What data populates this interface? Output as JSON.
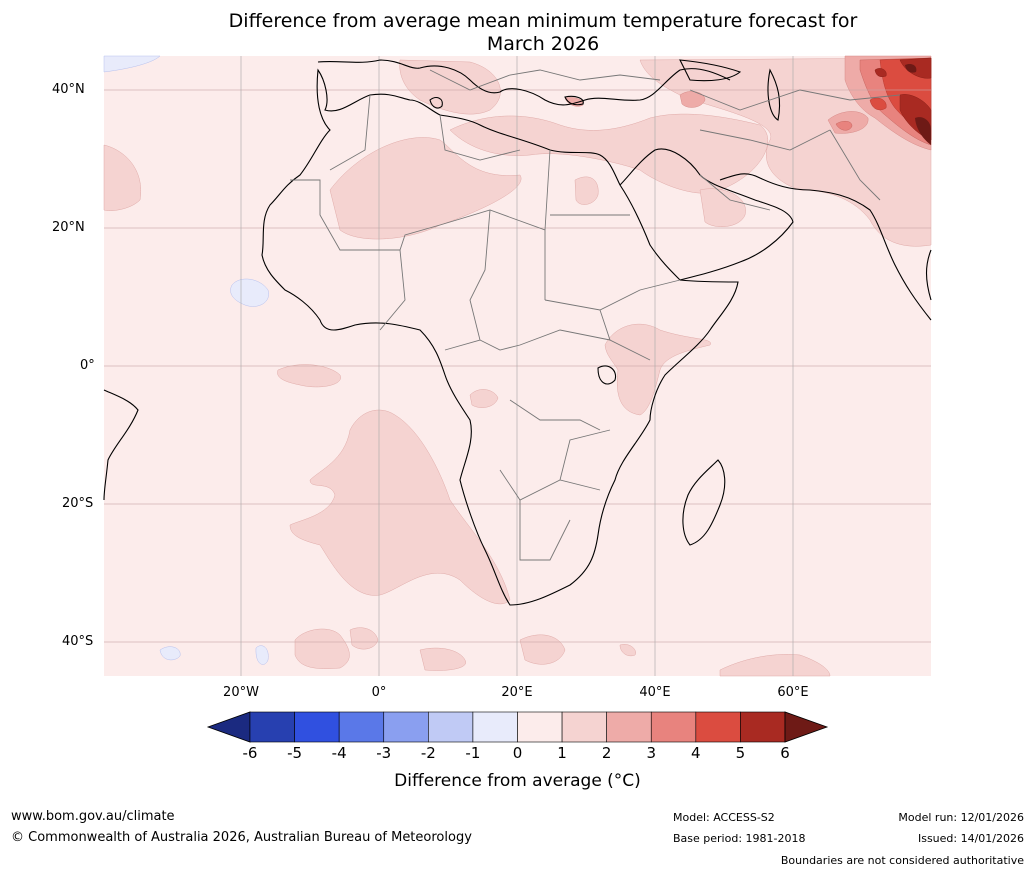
{
  "title_line1": "Difference from average mean minimum temperature forecast for",
  "title_line2": "March 2026",
  "axes": {
    "lat_labels": [
      "40°N",
      "20°N",
      "0°",
      "20°S",
      "40°S"
    ],
    "lon_labels": [
      "20°W",
      "0°",
      "20°E",
      "40°E",
      "60°E"
    ]
  },
  "colorbar": {
    "ticks": [
      "-6",
      "-5",
      "-4",
      "-3",
      "-2",
      "-1",
      "0",
      "1",
      "2",
      "3",
      "4",
      "5",
      "6"
    ],
    "colors": [
      "#1b2a80",
      "#2740b0",
      "#3050e0",
      "#5a78e8",
      "#8a9ff0",
      "#c0caf5",
      "#e8ebfb",
      "#fceceb",
      "#f5d3d1",
      "#eeaba8",
      "#e8837e",
      "#db4c40",
      "#a92a22",
      "#6e1a16"
    ],
    "title": "Difference from average ($^\\circ$C)",
    "title_display": "Difference from average (°C)"
  },
  "footer": {
    "website": "www.bom.gov.au/climate",
    "copyright": "© Commonwealth of Australia 2026, Australian Bureau of Meteorology",
    "model": "Model: ACCESS-S2",
    "base_period": "Base period: 1981-2018",
    "model_run": "Model run: 12/01/2026",
    "issued": "Issued: 14/01/2026",
    "disclaimer": "Boundaries are not considered authoritative"
  }
}
